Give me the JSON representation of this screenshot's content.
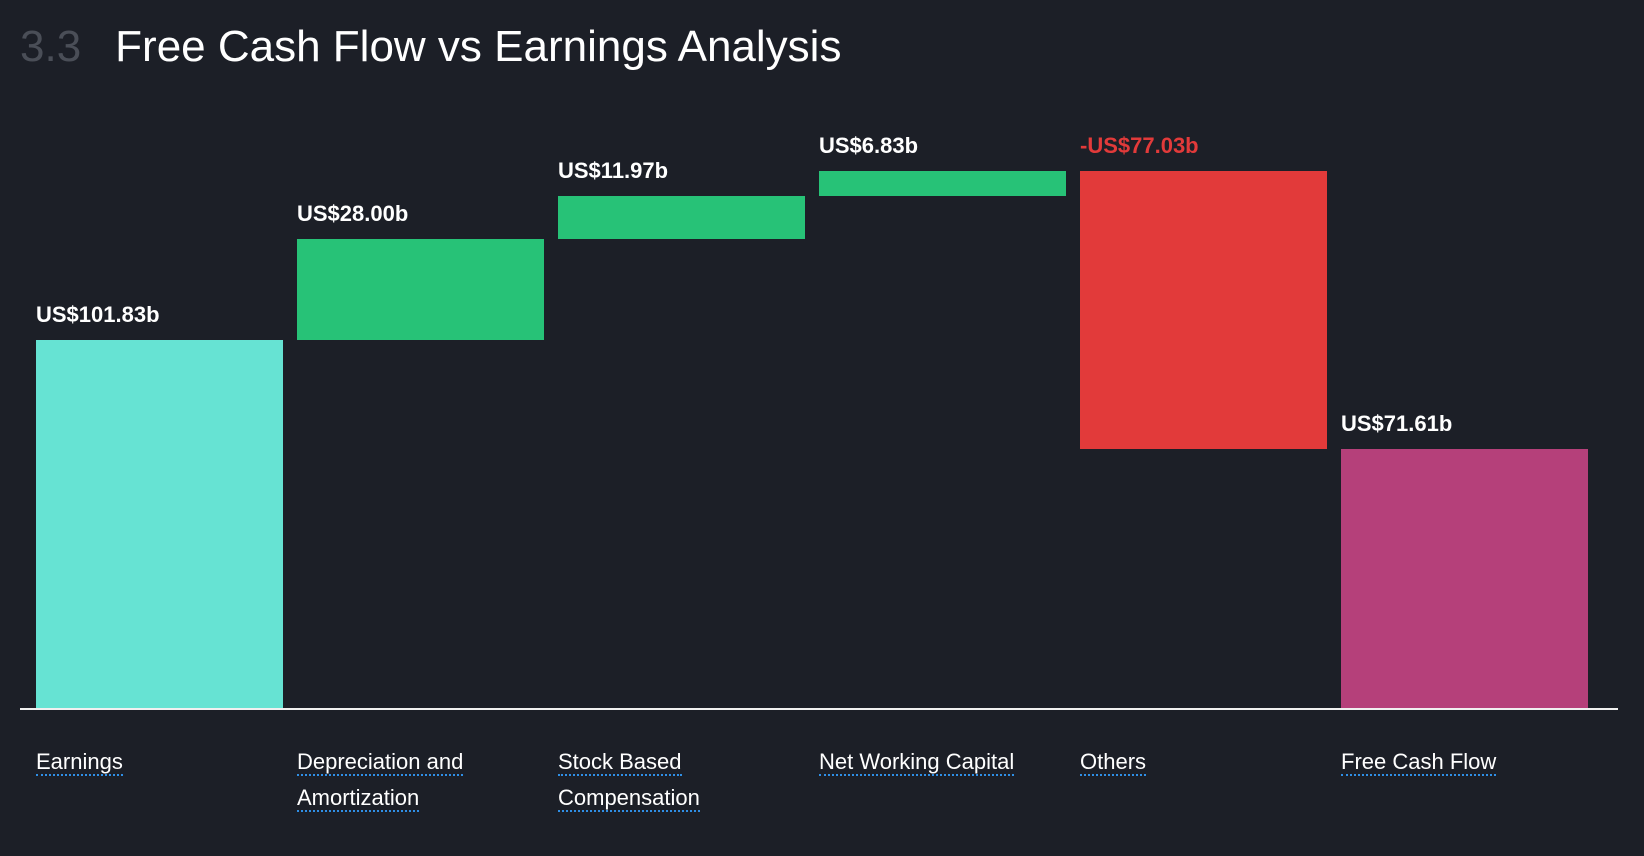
{
  "header": {
    "section_number": "3.3",
    "title": "Free Cash Flow vs Earnings Analysis"
  },
  "chart_data": {
    "type": "waterfall",
    "title": "Free Cash Flow vs Earnings Analysis",
    "unit": "US$ billions",
    "categories": [
      "Earnings",
      "Depreciation and Amortization",
      "Stock Based Compensation",
      "Net Working Capital",
      "Others",
      "Free Cash Flow"
    ],
    "category_lines": [
      [
        "Earnings"
      ],
      [
        "Depreciation and",
        "Amortization"
      ],
      [
        "Stock Based",
        "Compensation"
      ],
      [
        "Net Working Capital"
      ],
      [
        "Others"
      ],
      [
        "Free Cash Flow"
      ]
    ],
    "values": [
      101.83,
      28.0,
      11.97,
      6.83,
      -77.03,
      71.61
    ],
    "kinds": [
      "total",
      "delta",
      "delta",
      "delta",
      "delta",
      "total"
    ],
    "labels": [
      "US$101.83b",
      "US$28.00b",
      "US$11.97b",
      "US$6.83b",
      "-US$77.03b",
      "US$71.61b"
    ],
    "colors": {
      "earnings": "#66e3d3",
      "positive": "#27c277",
      "negative": "#e23a3a",
      "fcf": "#b5407a",
      "negative_label": "#e23a3a",
      "label": "#ffffff"
    },
    "ylim": [
      0,
      150
    ]
  }
}
